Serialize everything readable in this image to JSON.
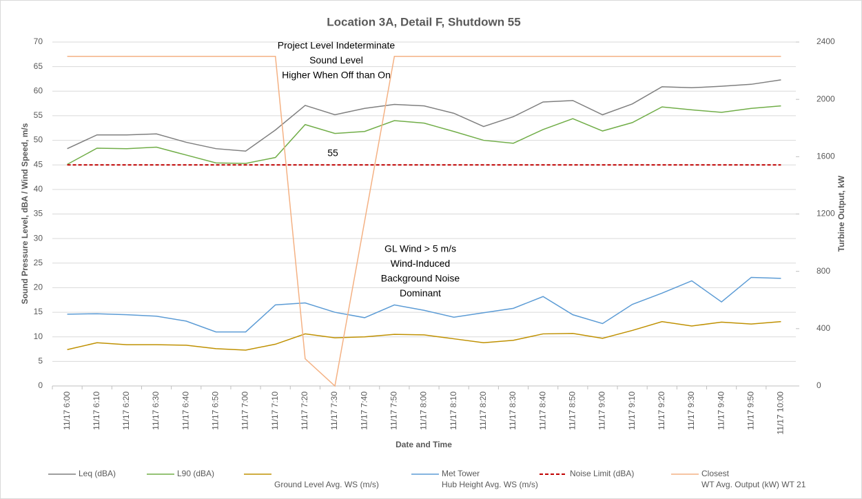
{
  "chart_data": {
    "type": "line",
    "title": "Location 3A, Detail F, Shutdown 55",
    "x_label": "Date and Time",
    "y_label": "Sound Pressure Level, dBA / Wind Speed, m/s",
    "y2_label": "Turbine Output, kW",
    "categories": [
      "11/17 6:00",
      "11/17 6:10",
      "11/17 6:20",
      "11/17 6:30",
      "11/17 6:40",
      "11/17 6:50",
      "11/17 7:00",
      "11/17 7:10",
      "11/17 7:20",
      "11/17 7:30",
      "11/17 7:40",
      "11/17 7:50",
      "11/17 8:00",
      "11/17 8:10",
      "11/17 8:20",
      "11/17 8:30",
      "11/17 8:40",
      "11/17 8:50",
      "11/17 9:00",
      "11/17 9:10",
      "11/17 9:20",
      "11/17 9:30",
      "11/17 9:40",
      "11/17 9:50",
      "11/17 10:00"
    ],
    "ylim": [
      0,
      70
    ],
    "yticks": [
      0,
      5,
      10,
      15,
      20,
      25,
      30,
      35,
      40,
      45,
      50,
      55,
      60,
      65,
      70
    ],
    "y2lim": [
      0,
      2400
    ],
    "y2ticks": [
      0,
      400,
      800,
      1200,
      1600,
      2000,
      2400
    ],
    "grid": true,
    "series": [
      {
        "name": [
          "Leq (dBA)"
        ],
        "color": "#7f7f7f",
        "values": [
          48.3,
          51.1,
          51.1,
          51.3,
          49.6,
          48.3,
          47.8,
          52.1,
          57.1,
          55.2,
          56.5,
          57.3,
          57.0,
          55.5,
          52.8,
          54.8,
          57.8,
          58.1,
          55.2,
          57.4,
          60.9,
          60.7,
          61.0,
          61.4,
          62.3
        ]
      },
      {
        "name": [
          "L90 (dBA)"
        ],
        "color": "#70ad47",
        "values": [
          45.1,
          48.4,
          48.3,
          48.6,
          47.0,
          45.4,
          45.3,
          46.5,
          53.2,
          51.4,
          51.8,
          54.0,
          53.5,
          51.8,
          50.0,
          49.4,
          52.2,
          54.4,
          51.9,
          53.6,
          56.8,
          56.2,
          55.7,
          56.5,
          57.0
        ]
      },
      {
        "name": [
          "Ground Level Avg. WS (m/s)"
        ],
        "color": "#bf9000",
        "values": [
          7.4,
          8.8,
          8.4,
          8.4,
          8.3,
          7.6,
          7.3,
          8.5,
          10.6,
          9.8,
          10.0,
          10.5,
          10.4,
          9.6,
          8.8,
          9.3,
          10.6,
          10.7,
          9.7,
          11.3,
          13.1,
          12.2,
          13.0,
          12.6,
          13.1
        ]
      },
      {
        "name": [
          "Met Tower",
          "Hub Height Avg. WS (m/s)"
        ],
        "color": "#5b9bd5",
        "values": [
          14.6,
          14.7,
          14.5,
          14.2,
          13.2,
          11.0,
          11.0,
          16.5,
          16.9,
          15.0,
          13.9,
          16.5,
          15.4,
          14.0,
          14.9,
          15.8,
          18.2,
          14.5,
          12.7,
          16.6,
          18.9,
          21.4,
          17.1,
          22.1,
          21.9
        ]
      },
      {
        "name": [
          "Noise Limit (dBA)"
        ],
        "color": "#c00000",
        "dashed": true,
        "values": [
          45,
          45,
          45,
          45,
          45,
          45,
          45,
          45,
          45,
          45,
          45,
          45,
          45,
          45,
          45,
          45,
          45,
          45,
          45,
          45,
          45,
          45,
          45,
          45,
          45
        ]
      },
      {
        "name": [
          "Closest",
          "WT Avg. Output (kW) WT 21"
        ],
        "color": "#f4b183",
        "axis": "y2",
        "values": [
          2300,
          2300,
          2300,
          2300,
          2300,
          2300,
          2300,
          2300,
          190,
          0,
          1150,
          2300,
          2300,
          2300,
          2300,
          2300,
          2300,
          2300,
          2300,
          2300,
          2300,
          2300,
          2300,
          2300,
          2300
        ]
      }
    ],
    "annotations": [
      {
        "lines": [
          "Project Level Indeterminate",
          "Sound Level",
          "Higher When Off than On"
        ]
      },
      {
        "lines": [
          "55"
        ]
      },
      {
        "lines": [
          "GL Wind > 5 m/s",
          "Wind-Induced",
          "Background Noise",
          "Dominant"
        ]
      }
    ]
  }
}
